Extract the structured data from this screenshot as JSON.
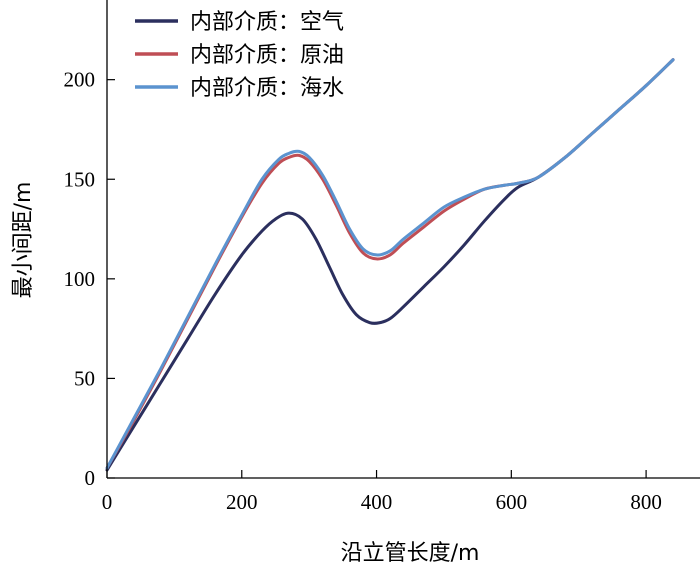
{
  "chart_data": {
    "type": "line",
    "xlabel": "沿立管长度/m",
    "ylabel": "最小间距/m",
    "xlim": [
      0,
      880
    ],
    "ylim": [
      0,
      240
    ],
    "xticks": [
      0,
      200,
      400,
      600,
      800
    ],
    "yticks": [
      0,
      50,
      100,
      150,
      200
    ],
    "grid": false,
    "legend_position": "top-left",
    "series": [
      {
        "name": "内部介质：空气",
        "color": "#2b2f5e",
        "x": [
          0,
          40,
          80,
          120,
          160,
          200,
          230,
          250,
          270,
          290,
          310,
          330,
          350,
          370,
          390,
          405,
          420,
          440,
          470,
          500,
          530,
          560,
          590,
          610,
          640,
          680,
          720,
          760,
          800,
          840
        ],
        "y": [
          4,
          26,
          48,
          70,
          92,
          112,
          124,
          130,
          133,
          130,
          120,
          106,
          92,
          82,
          78,
          78,
          80,
          86,
          96,
          106,
          117,
          129,
          140,
          146,
          151,
          161,
          173,
          185,
          197,
          210
        ]
      },
      {
        "name": "内部介质：原油",
        "color": "#bf4e55",
        "x": [
          0,
          40,
          80,
          120,
          160,
          200,
          230,
          255,
          270,
          285,
          300,
          320,
          340,
          360,
          380,
          400,
          420,
          440,
          470,
          500,
          530,
          560,
          590,
          610,
          640,
          680,
          720,
          760,
          800,
          840
        ],
        "y": [
          5,
          29,
          54,
          80,
          106,
          131,
          148,
          158,
          161,
          162,
          159,
          150,
          137,
          123,
          113,
          110,
          112,
          118,
          126,
          134,
          140,
          145,
          147,
          148,
          151,
          161,
          173,
          185,
          197,
          210
        ]
      },
      {
        "name": "内部介质：海水",
        "color": "#5b93cf",
        "x": [
          0,
          40,
          80,
          120,
          160,
          200,
          230,
          255,
          270,
          285,
          300,
          320,
          340,
          360,
          380,
          400,
          420,
          440,
          470,
          500,
          530,
          560,
          590,
          610,
          640,
          680,
          720,
          760,
          800,
          840
        ],
        "y": [
          5,
          30,
          55,
          81,
          107,
          132,
          150,
          160,
          163,
          164,
          161,
          152,
          139,
          125,
          115,
          112,
          114,
          120,
          128,
          136,
          141,
          145,
          147,
          148,
          151,
          161,
          173,
          185,
          197,
          210
        ]
      }
    ]
  }
}
